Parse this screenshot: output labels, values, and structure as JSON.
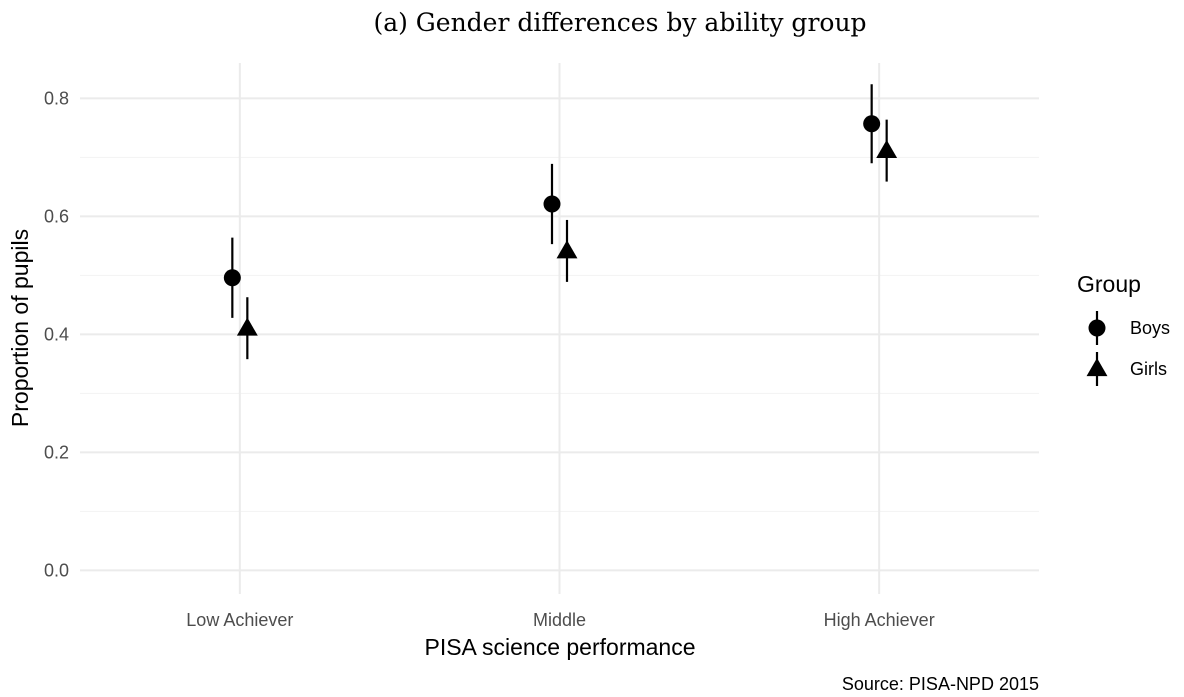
{
  "chart_data": {
    "type": "scatter",
    "title": "(a)  Gender differences by ability group",
    "xlabel": "PISA science performance",
    "ylabel": "Proportion of pupils",
    "caption": "Source: PISA-NPD 2015",
    "categories": [
      "Low Achiever",
      "Middle",
      "High Achiever"
    ],
    "ylim": [
      -0.04,
      0.86
    ],
    "yticks": [
      0.0,
      0.2,
      0.4,
      0.6,
      0.8
    ],
    "ytick_labels": [
      "0.0",
      "0.2",
      "0.4",
      "0.6",
      "0.8"
    ],
    "grid": true,
    "legend": {
      "title": "Group",
      "position": "right"
    },
    "series": [
      {
        "name": "Boys",
        "marker": "circle",
        "values": [
          0.496,
          0.621,
          0.757
        ],
        "lower": [
          0.428,
          0.553,
          0.69
        ],
        "upper": [
          0.564,
          0.689,
          0.824
        ]
      },
      {
        "name": "Girls",
        "marker": "triangle",
        "values": [
          0.41,
          0.541,
          0.711
        ],
        "lower": [
          0.358,
          0.489,
          0.659
        ],
        "upper": [
          0.463,
          0.594,
          0.764
        ]
      }
    ],
    "colors": {
      "marks": "#000000",
      "grid": "#ebebeb"
    }
  }
}
